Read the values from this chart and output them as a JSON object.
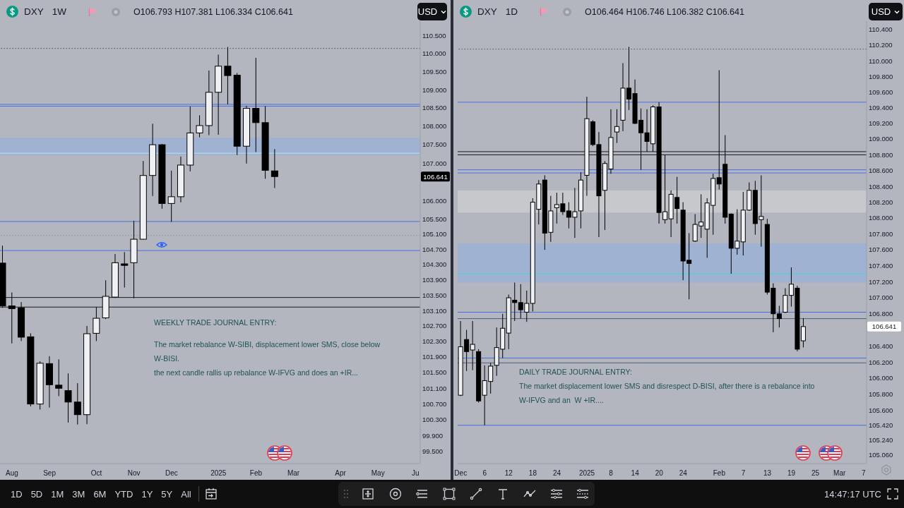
{
  "chart_data": [
    {
      "type": "candlestick",
      "title": "DXY",
      "subtitle": "1W",
      "ylabel": "USD",
      "log": true,
      "categories": [
        null,
        "Aug",
        null,
        null,
        null,
        "Sep",
        null,
        null,
        null,
        null,
        "Oct",
        null,
        null,
        null,
        "Nov",
        null,
        null,
        null,
        "Dec",
        null,
        null,
        null,
        null,
        "2025",
        null,
        null,
        null,
        "Feb",
        null,
        null,
        null,
        "Mar",
        null,
        null,
        null,
        null,
        "Apr",
        null,
        null,
        null,
        "May",
        null,
        null,
        null,
        "Ju"
      ],
      "ohlc": [
        [
          104.34,
          104.8,
          103.17,
          103.22
        ],
        [
          103.22,
          103.57,
          102.25,
          103.15
        ],
        [
          103.17,
          103.32,
          102.31,
          102.41
        ],
        [
          102.42,
          102.51,
          100.64,
          100.7
        ],
        [
          100.7,
          101.79,
          100.56,
          101.74
        ],
        [
          101.73,
          101.92,
          100.61,
          101.19
        ],
        [
          101.18,
          101.84,
          100.9,
          101.1
        ],
        [
          101.04,
          101.48,
          100.23,
          100.75
        ],
        [
          100.75,
          101.23,
          100.18,
          100.43
        ],
        [
          100.43,
          102.7,
          100.19,
          102.5
        ],
        [
          102.51,
          103.19,
          102.31,
          102.9
        ],
        [
          102.91,
          103.89,
          102.88,
          103.47
        ],
        [
          103.45,
          104.58,
          103.43,
          104.35
        ],
        [
          104.32,
          104.63,
          103.7,
          104.28
        ],
        [
          104.35,
          105.46,
          103.42,
          104.97
        ],
        [
          104.97,
          107.06,
          104.96,
          106.67
        ],
        [
          106.67,
          108.07,
          106.12,
          107.5
        ],
        [
          107.5,
          107.52,
          105.78,
          105.92
        ],
        [
          105.92,
          106.8,
          105.43,
          106.1
        ],
        [
          106.1,
          107.18,
          105.95,
          106.95
        ],
        [
          106.95,
          108.54,
          106.78,
          107.82
        ],
        [
          107.82,
          108.3,
          107.7,
          108.02
        ],
        [
          108.02,
          109.53,
          107.76,
          108.93
        ],
        [
          108.93,
          109.97,
          107.77,
          109.65
        ],
        [
          109.65,
          110.18,
          108.6,
          109.39
        ],
        [
          109.4,
          109.46,
          107.22,
          107.46
        ],
        [
          107.46,
          108.56,
          106.99,
          108.49
        ],
        [
          108.49,
          109.88,
          107.3,
          108.1
        ],
        [
          108.1,
          108.55,
          106.58,
          106.81
        ],
        [
          106.793,
          107.381,
          106.334,
          106.641
        ],
        null,
        null,
        null,
        null,
        null,
        null,
        null,
        null,
        null,
        null,
        null,
        null,
        null,
        null,
        null
      ],
      "ylim": [
        99.2,
        110.9
      ],
      "yticks": [
        {
          "value": 110.5,
          "label": "110.500"
        },
        {
          "value": 110,
          "label": "110.000"
        },
        {
          "value": 109.5,
          "label": "109.500"
        },
        {
          "value": 109,
          "label": "109.000"
        },
        {
          "value": 108.5,
          "label": "108.500"
        },
        {
          "value": 108,
          "label": "108.000"
        },
        {
          "value": 107.5,
          "label": "107.500"
        },
        {
          "value": 107,
          "label": "107.000"
        },
        {
          "value": 106,
          "label": "106.000"
        },
        {
          "value": 105.5,
          "label": "105.500"
        },
        {
          "value": 105.1,
          "label": "105.100"
        },
        {
          "value": 104.7,
          "label": "104.700"
        },
        {
          "value": 104.3,
          "label": "104.300"
        },
        {
          "value": 103.9,
          "label": "103.900"
        },
        {
          "value": 103.5,
          "label": "103.500"
        },
        {
          "value": 103.1,
          "label": "103.100"
        },
        {
          "value": 102.7,
          "label": "102.700"
        },
        {
          "value": 102.3,
          "label": "102.300"
        },
        {
          "value": 101.9,
          "label": "101.900"
        },
        {
          "value": 101.5,
          "label": "101.500"
        },
        {
          "value": 101.1,
          "label": "101.100"
        },
        {
          "value": 100.7,
          "label": "100.700"
        },
        {
          "value": 100.3,
          "label": "100.300"
        },
        {
          "value": 99.9,
          "label": "99.900"
        },
        {
          "value": 99.5,
          "label": "99.500"
        }
      ],
      "bands": [
        {
          "axis": "y",
          "from": 107.21,
          "to": 107.69,
          "color": "#9fb2d2"
        }
      ],
      "ref_lines": [
        {
          "axis": "y",
          "value": 110.14,
          "color": "#4b4f57",
          "line_style": "dotted"
        },
        {
          "axis": "y",
          "value": 108.6,
          "color": "#4a6fe0"
        },
        {
          "axis": "y",
          "value": 108.55,
          "color": "#4a6fe0"
        },
        {
          "axis": "y",
          "value": 107.27,
          "color": "#bfe0ec"
        },
        {
          "axis": "y",
          "value": 105.44,
          "color": "#4a6fe0"
        },
        {
          "axis": "y",
          "value": 105.07,
          "color": "#8e929b",
          "line_style": "dotted"
        },
        {
          "axis": "y",
          "value": 104.67,
          "color": "#4a6fe0"
        },
        {
          "axis": "y",
          "value": 103.44,
          "color": "#1a1a1a"
        },
        {
          "axis": "y",
          "value": 103.19,
          "color": "#1a1a1a"
        }
      ],
      "annotations": [
        "O106.793 H107.381 L106.334 C106.641",
        "WEEKLY TRADE JOURNAL ENTRY:",
        "The market rebalance W-SIBI, displacement lower SMS, close below",
        "W-BISI.",
        "the next candle rallis up rebalance W-IFVG and does an +IR...",
        "106.641"
      ]
    },
    {
      "type": "candlestick",
      "title": "DXY",
      "subtitle": "1D",
      "ylabel": "USD",
      "log": true,
      "categories": [
        "Dec",
        null,
        null,
        null,
        "6",
        null,
        null,
        null,
        "12",
        null,
        null,
        null,
        "18",
        null,
        null,
        null,
        "24",
        null,
        null,
        null,
        null,
        "2025",
        null,
        null,
        null,
        "8",
        null,
        null,
        null,
        "14",
        null,
        null,
        null,
        "20",
        null,
        null,
        null,
        "24",
        null,
        null,
        null,
        null,
        null,
        "Feb",
        null,
        null,
        null,
        "7",
        null,
        null,
        null,
        "13",
        null,
        null,
        null,
        "19",
        null,
        null,
        null,
        "25",
        null,
        null,
        null,
        "Mar",
        null,
        null,
        null,
        "7"
      ],
      "ohlc": [
        [
          105.79,
          106.71,
          105.78,
          106.39
        ],
        [
          106.48,
          106.6,
          106.09,
          106.33
        ],
        [
          106.35,
          106.71,
          106.1,
          106.42
        ],
        [
          106.33,
          106.36,
          105.7,
          105.72
        ],
        [
          105.79,
          106.16,
          105.42,
          105.97
        ],
        [
          105.96,
          106.19,
          105.81,
          106.15
        ],
        [
          106.16,
          106.63,
          106.03,
          106.38
        ],
        [
          106.36,
          106.8,
          106.25,
          106.62
        ],
        [
          106.56,
          107.04,
          106.36,
          107.0
        ],
        [
          106.97,
          107.19,
          106.71,
          106.94
        ],
        [
          106.94,
          107.17,
          106.74,
          106.85
        ],
        [
          106.82,
          107.09,
          106.7,
          106.93
        ],
        [
          106.93,
          108.25,
          106.83,
          108.2
        ],
        [
          108.11,
          108.48,
          107.92,
          108.43
        ],
        [
          108.48,
          108.54,
          107.6,
          107.81
        ],
        [
          107.82,
          108.28,
          107.7,
          108.09
        ],
        [
          108.13,
          108.32,
          107.93,
          108.17
        ],
        [
          108.18,
          108.32,
          108.04,
          108.08
        ],
        [
          108.09,
          108.2,
          107.87,
          108.01
        ],
        [
          108.01,
          108.38,
          107.75,
          108.08
        ],
        [
          108.09,
          108.58,
          107.87,
          108.48
        ],
        [
          108.54,
          109.54,
          108.28,
          109.26
        ],
        [
          109.22,
          109.24,
          108.91,
          108.93
        ],
        [
          108.93,
          109.09,
          107.76,
          108.28
        ],
        [
          108.35,
          108.72,
          107.85,
          108.69
        ],
        [
          108.62,
          109.38,
          108.56,
          109.02
        ],
        [
          109.09,
          109.38,
          108.95,
          109.16
        ],
        [
          109.24,
          109.97,
          109.1,
          109.65
        ],
        [
          109.65,
          110.18,
          109.37,
          109.51
        ],
        [
          109.58,
          109.76,
          109.19,
          109.2
        ],
        [
          109.24,
          109.39,
          108.61,
          109.08
        ],
        [
          109.08,
          109.38,
          108.84,
          108.97
        ],
        [
          108.94,
          109.43,
          108.84,
          109.41
        ],
        [
          109.41,
          109.47,
          107.93,
          108.07
        ],
        [
          107.98,
          108.8,
          107.93,
          108.08
        ],
        [
          107.99,
          108.35,
          107.76,
          108.3
        ],
        [
          108.26,
          108.52,
          107.93,
          108.12
        ],
        [
          108.1,
          108.2,
          107.22,
          107.46
        ],
        [
          107.47,
          107.81,
          106.98,
          107.43
        ],
        [
          107.71,
          108.05,
          107.7,
          107.92
        ],
        [
          107.9,
          108.3,
          107.75,
          107.95
        ],
        [
          107.86,
          108.25,
          107.5,
          108.19
        ],
        [
          108.16,
          108.56,
          107.79,
          108.5
        ],
        [
          108.51,
          109.88,
          108.36,
          108.43
        ],
        [
          108.68,
          109.05,
          107.93,
          108.01
        ],
        [
          108.05,
          108.06,
          107.3,
          107.62
        ],
        [
          107.62,
          108.11,
          107.54,
          107.71
        ],
        [
          107.7,
          108.33,
          107.53,
          108.1
        ],
        [
          108.1,
          108.45,
          108.09,
          108.35
        ],
        [
          108.35,
          108.47,
          107.79,
          107.93
        ],
        [
          107.98,
          108.54,
          107.64,
          108.02
        ],
        [
          107.92,
          107.99,
          107.04,
          107.07
        ],
        [
          107.12,
          107.18,
          106.57,
          106.8
        ],
        [
          106.8,
          106.9,
          106.63,
          106.74
        ],
        [
          106.82,
          107.12,
          106.81,
          107.03
        ],
        [
          107.03,
          107.38,
          106.89,
          107.17
        ],
        [
          107.12,
          107.15,
          106.334,
          106.36
        ],
        [
          106.464,
          106.746,
          106.382,
          106.641
        ],
        null,
        null,
        null,
        null,
        null,
        null,
        null,
        null,
        null,
        null
      ],
      "ylim": [
        104.95,
        110.51
      ],
      "yticks": [
        {
          "value": 110.4,
          "label": "110.400"
        },
        {
          "value": 110.2,
          "label": "110.200"
        },
        {
          "value": 110,
          "label": "110.000"
        },
        {
          "value": 109.8,
          "label": "109.800"
        },
        {
          "value": 109.6,
          "label": "109.600"
        },
        {
          "value": 109.4,
          "label": "109.400"
        },
        {
          "value": 109.2,
          "label": "109.200"
        },
        {
          "value": 109,
          "label": "109.000"
        },
        {
          "value": 108.8,
          "label": "108.800"
        },
        {
          "value": 108.6,
          "label": "108.600"
        },
        {
          "value": 108.4,
          "label": "108.400"
        },
        {
          "value": 108.2,
          "label": "108.200"
        },
        {
          "value": 108,
          "label": "108.000"
        },
        {
          "value": 107.8,
          "label": "107.800"
        },
        {
          "value": 107.6,
          "label": "107.600"
        },
        {
          "value": 107.4,
          "label": "107.400"
        },
        {
          "value": 107.2,
          "label": "107.200"
        },
        {
          "value": 107,
          "label": "107.000"
        },
        {
          "value": 106.8,
          "label": "106.800"
        },
        {
          "value": 106.4,
          "label": "106.400"
        },
        {
          "value": 106.2,
          "label": "106.200"
        },
        {
          "value": 106,
          "label": "106.000"
        },
        {
          "value": 105.8,
          "label": "105.800"
        },
        {
          "value": 105.6,
          "label": "105.600"
        },
        {
          "value": 105.42,
          "label": "105.420"
        },
        {
          "value": 105.24,
          "label": "105.240"
        },
        {
          "value": 105.06,
          "label": "105.060"
        }
      ],
      "bands": [
        {
          "axis": "y",
          "from": 107.19,
          "to": 107.68,
          "color": "#9fb2d2"
        },
        {
          "axis": "y",
          "from": 108.07,
          "to": 108.35,
          "color": "#c7c8cc"
        }
      ],
      "ref_lines": [
        {
          "axis": "y",
          "value": 110.15,
          "color": "#4b4f57",
          "line_style": "dotted"
        },
        {
          "axis": "y",
          "value": 109.47,
          "color": "#4a6fe0"
        },
        {
          "axis": "y",
          "value": 108.84,
          "color": "#1a1a1a"
        },
        {
          "axis": "y",
          "value": 108.8,
          "color": "#1a1a1a"
        },
        {
          "axis": "y",
          "value": 108.61,
          "color": "#4a6fe0"
        },
        {
          "axis": "y",
          "value": 108.57,
          "color": "#4a6fe0"
        },
        {
          "axis": "y",
          "value": 107.3,
          "color": "#3fd8cc"
        },
        {
          "axis": "y",
          "value": 106.82,
          "color": "#4a6fe0"
        },
        {
          "axis": "y",
          "value": 106.74,
          "color": "#50607a"
        },
        {
          "axis": "y",
          "value": 106.25,
          "color": "#4a6fe0"
        },
        {
          "axis": "y",
          "value": 106.19,
          "color": "#50607a"
        },
        {
          "axis": "y",
          "value": 105.42,
          "color": "#4a6fe0"
        }
      ],
      "annotations": [
        "O106.464 H106.746 L106.382 C106.641",
        "DAILY TRADE JOURNAL ENTRY:",
        "The market displacement lower SMS and disrespect D-BISI, after there is a rebalance into",
        "W-IFVG and an  W +IR....",
        "106.641"
      ]
    },
    {
      "type": "other",
      "annotations": [
        "1D",
        "5D",
        "1M",
        "3M",
        "6M",
        "YTD",
        "1Y",
        "5Y",
        "All",
        "14:47:17 UTC"
      ]
    }
  ]
}
